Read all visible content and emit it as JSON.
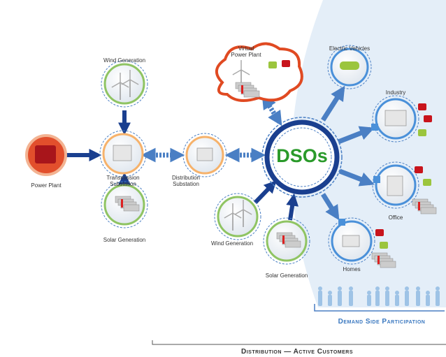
{
  "nodes": [
    {
      "label": "Wind Generation"
    },
    {
      "label": "Power Plant"
    },
    {
      "label": "Transmission Substation"
    },
    {
      "label": "Solar Generation"
    },
    {
      "label": "Distribution Substation"
    },
    {
      "label": "Virtual Power Plant"
    },
    {
      "label": "DSOs"
    },
    {
      "label": "Wind Generation"
    },
    {
      "label": "Solar Generation"
    },
    {
      "label": "Electric Vehicles"
    },
    {
      "label": "Industry"
    },
    {
      "label": "Office"
    },
    {
      "label": "Homes"
    }
  ],
  "demand_label": "Demand Side Participation",
  "footer_label": "Distribution — Active Customers"
}
